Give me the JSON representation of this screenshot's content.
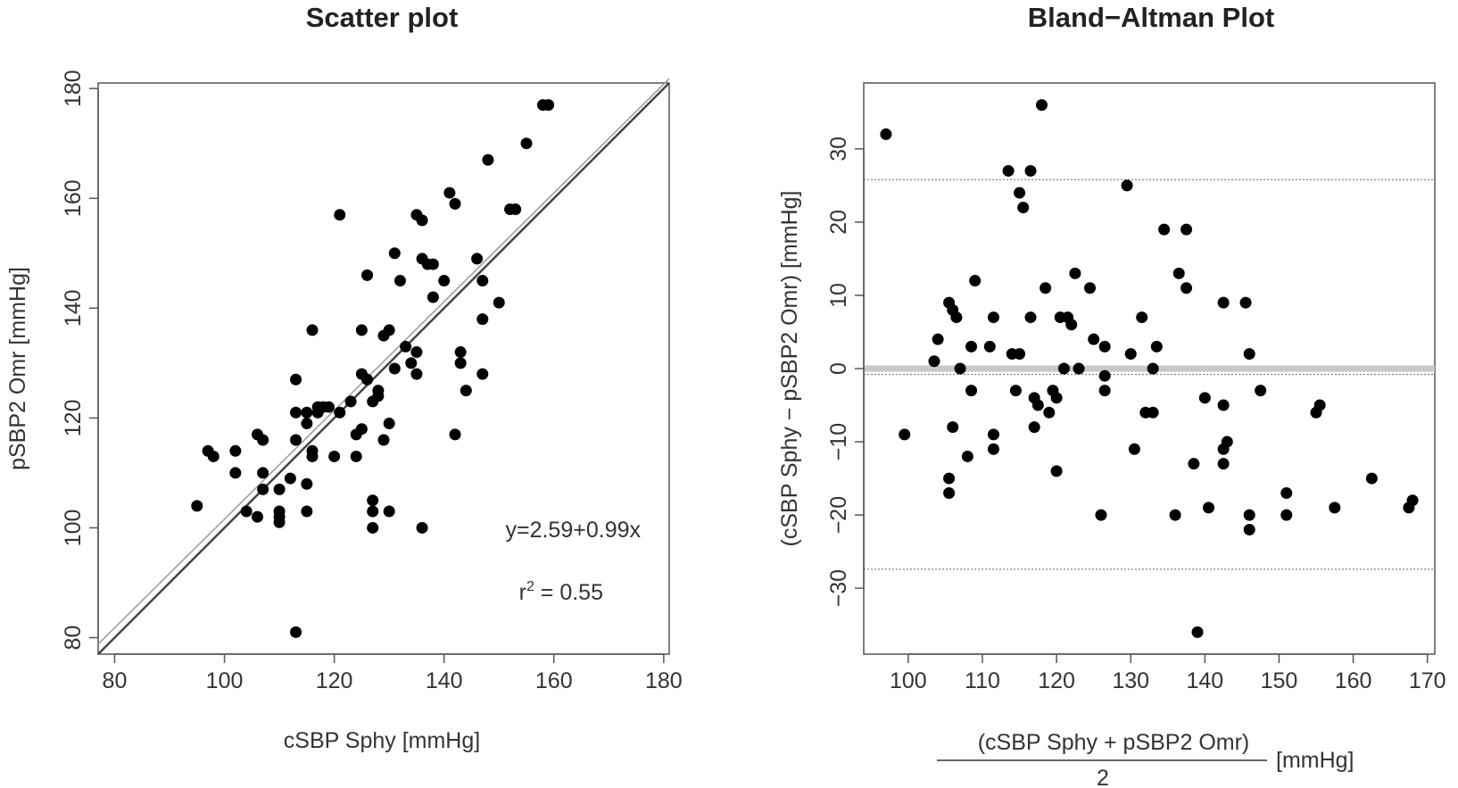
{
  "chart_data": [
    {
      "type": "scatter",
      "title": "Scatter plot",
      "xlabel": "cSBP Sphy [mmHg]",
      "ylabel": "pSBP2 Omr [mmHg]",
      "xlim": [
        77,
        181
      ],
      "ylim": [
        77,
        181
      ],
      "xticks": [
        80,
        100,
        120,
        140,
        160,
        180
      ],
      "yticks": [
        80,
        100,
        120,
        140,
        160,
        180
      ],
      "annotation_equation": "y=2.59+0.99x",
      "annotation_r2_prefix": "r",
      "annotation_r2_sup": "2",
      "annotation_r2_value": " = 0.55",
      "identity_line": {
        "intercept": 0,
        "slope": 1
      },
      "fit_line": {
        "intercept": 2.59,
        "slope": 0.99
      },
      "points": [
        [
          95,
          104
        ],
        [
          97,
          114
        ],
        [
          98,
          113
        ],
        [
          102,
          114
        ],
        [
          102,
          110
        ],
        [
          104,
          103
        ],
        [
          106,
          117
        ],
        [
          106,
          102
        ],
        [
          107,
          116
        ],
        [
          107,
          110
        ],
        [
          107,
          107
        ],
        [
          110,
          107
        ],
        [
          110,
          103
        ],
        [
          110,
          102
        ],
        [
          110,
          101
        ],
        [
          112,
          109
        ],
        [
          113,
          127
        ],
        [
          113,
          121
        ],
        [
          113,
          116
        ],
        [
          113,
          81
        ],
        [
          115,
          121
        ],
        [
          115,
          119
        ],
        [
          115,
          108
        ],
        [
          115,
          103
        ],
        [
          116,
          113
        ],
        [
          116,
          114
        ],
        [
          116,
          136
        ],
        [
          117,
          122
        ],
        [
          117,
          121
        ],
        [
          118,
          122
        ],
        [
          119,
          122
        ],
        [
          120,
          113
        ],
        [
          121,
          121
        ],
        [
          121,
          157
        ],
        [
          123,
          123
        ],
        [
          124,
          113
        ],
        [
          124,
          117
        ],
        [
          125,
          118
        ],
        [
          125,
          136
        ],
        [
          125,
          128
        ],
        [
          126,
          127
        ],
        [
          126,
          146
        ],
        [
          127,
          123
        ],
        [
          127,
          105
        ],
        [
          127,
          103
        ],
        [
          127,
          100
        ],
        [
          128,
          125
        ],
        [
          128,
          124
        ],
        [
          129,
          116
        ],
        [
          129,
          135
        ],
        [
          130,
          119
        ],
        [
          130,
          103
        ],
        [
          130,
          136
        ],
        [
          131,
          129
        ],
        [
          131,
          150
        ],
        [
          132,
          145
        ],
        [
          133,
          133
        ],
        [
          134,
          130
        ],
        [
          135,
          132
        ],
        [
          135,
          128
        ],
        [
          135,
          157
        ],
        [
          136,
          156
        ],
        [
          136,
          149
        ],
        [
          136,
          100
        ],
        [
          137,
          148
        ],
        [
          138,
          142
        ],
        [
          138,
          148
        ],
        [
          140,
          145
        ],
        [
          141,
          161
        ],
        [
          142,
          159
        ],
        [
          142,
          117
        ],
        [
          143,
          132
        ],
        [
          143,
          130
        ],
        [
          144,
          125
        ],
        [
          146,
          149
        ],
        [
          147,
          145
        ],
        [
          147,
          138
        ],
        [
          147,
          128
        ],
        [
          148,
          167
        ],
        [
          150,
          141
        ],
        [
          152,
          158
        ],
        [
          153,
          158
        ],
        [
          155,
          170
        ],
        [
          158,
          177
        ],
        [
          159,
          177
        ]
      ]
    },
    {
      "type": "scatter",
      "title": "Bland−Altman Plot",
      "xlabel_numerator": "(cSBP Sphy + pSBP2 Omr)",
      "xlabel_denominator": "2",
      "xlabel_unit": "[mmHg]",
      "ylabel": "(cSBP Sphy − pSBP2 Omr) [mmHg]",
      "xlim": [
        94,
        171
      ],
      "ylim": [
        -39,
        39
      ],
      "xticks": [
        100,
        110,
        120,
        130,
        140,
        150,
        160,
        170
      ],
      "yticks": [
        -30,
        -20,
        -10,
        0,
        10,
        20,
        30
      ],
      "ytick_labels": [
        "−30",
        "−20",
        "−10",
        "0",
        "10",
        "20",
        "30"
      ],
      "zero_line": 0,
      "mean_line": -0.8,
      "upper_limit": 25.8,
      "lower_limit": -27.4,
      "points": [
        [
          97,
          32
        ],
        [
          99.5,
          -9
        ],
        [
          103.5,
          1
        ],
        [
          104,
          4
        ],
        [
          105.5,
          -15
        ],
        [
          105.5,
          -17
        ],
        [
          105.5,
          9
        ],
        [
          106,
          8
        ],
        [
          106,
          -8
        ],
        [
          106.5,
          7
        ],
        [
          107,
          0
        ],
        [
          108,
          -12
        ],
        [
          108.5,
          3
        ],
        [
          108.5,
          -3
        ],
        [
          109,
          12
        ],
        [
          111,
          3
        ],
        [
          111.5,
          -9
        ],
        [
          111.5,
          -11
        ],
        [
          111.5,
          7
        ],
        [
          113.5,
          27
        ],
        [
          114,
          2
        ],
        [
          114.5,
          -3
        ],
        [
          115,
          24
        ],
        [
          115,
          2
        ],
        [
          115.5,
          22
        ],
        [
          116.5,
          27
        ],
        [
          116.5,
          7
        ],
        [
          117,
          -4
        ],
        [
          117,
          -8
        ],
        [
          117.5,
          -5
        ],
        [
          118,
          36
        ],
        [
          118.5,
          11
        ],
        [
          119,
          -6
        ],
        [
          119.5,
          -3
        ],
        [
          120,
          -4
        ],
        [
          120,
          -14
        ],
        [
          120.5,
          7
        ],
        [
          121,
          0
        ],
        [
          121.5,
          7
        ],
        [
          122,
          6
        ],
        [
          122.5,
          13
        ],
        [
          123,
          0
        ],
        [
          124.5,
          11
        ],
        [
          125,
          4
        ],
        [
          126,
          -20
        ],
        [
          126.5,
          3
        ],
        [
          126.5,
          -1
        ],
        [
          126.5,
          -3
        ],
        [
          129.5,
          25
        ],
        [
          130,
          2
        ],
        [
          130.5,
          -11
        ],
        [
          131.5,
          7
        ],
        [
          132,
          -6
        ],
        [
          133,
          0
        ],
        [
          133,
          -6
        ],
        [
          133.5,
          3
        ],
        [
          134.5,
          19
        ],
        [
          136,
          -20
        ],
        [
          136.5,
          13
        ],
        [
          137.5,
          19
        ],
        [
          137.5,
          11
        ],
        [
          138.5,
          -13
        ],
        [
          139,
          -36
        ],
        [
          140,
          -4
        ],
        [
          140.5,
          -19
        ],
        [
          142.5,
          9
        ],
        [
          142.5,
          -5
        ],
        [
          142.5,
          -11
        ],
        [
          142.5,
          -13
        ],
        [
          143,
          -10
        ],
        [
          145.5,
          9
        ],
        [
          146,
          2
        ],
        [
          146,
          -20
        ],
        [
          146,
          -22
        ],
        [
          147.5,
          -3
        ],
        [
          151,
          -17
        ],
        [
          151,
          -20
        ],
        [
          155,
          -6
        ],
        [
          155.5,
          -5
        ],
        [
          157.5,
          -19
        ],
        [
          162.5,
          -15
        ],
        [
          167.5,
          -19
        ],
        [
          168,
          -18
        ]
      ]
    }
  ]
}
